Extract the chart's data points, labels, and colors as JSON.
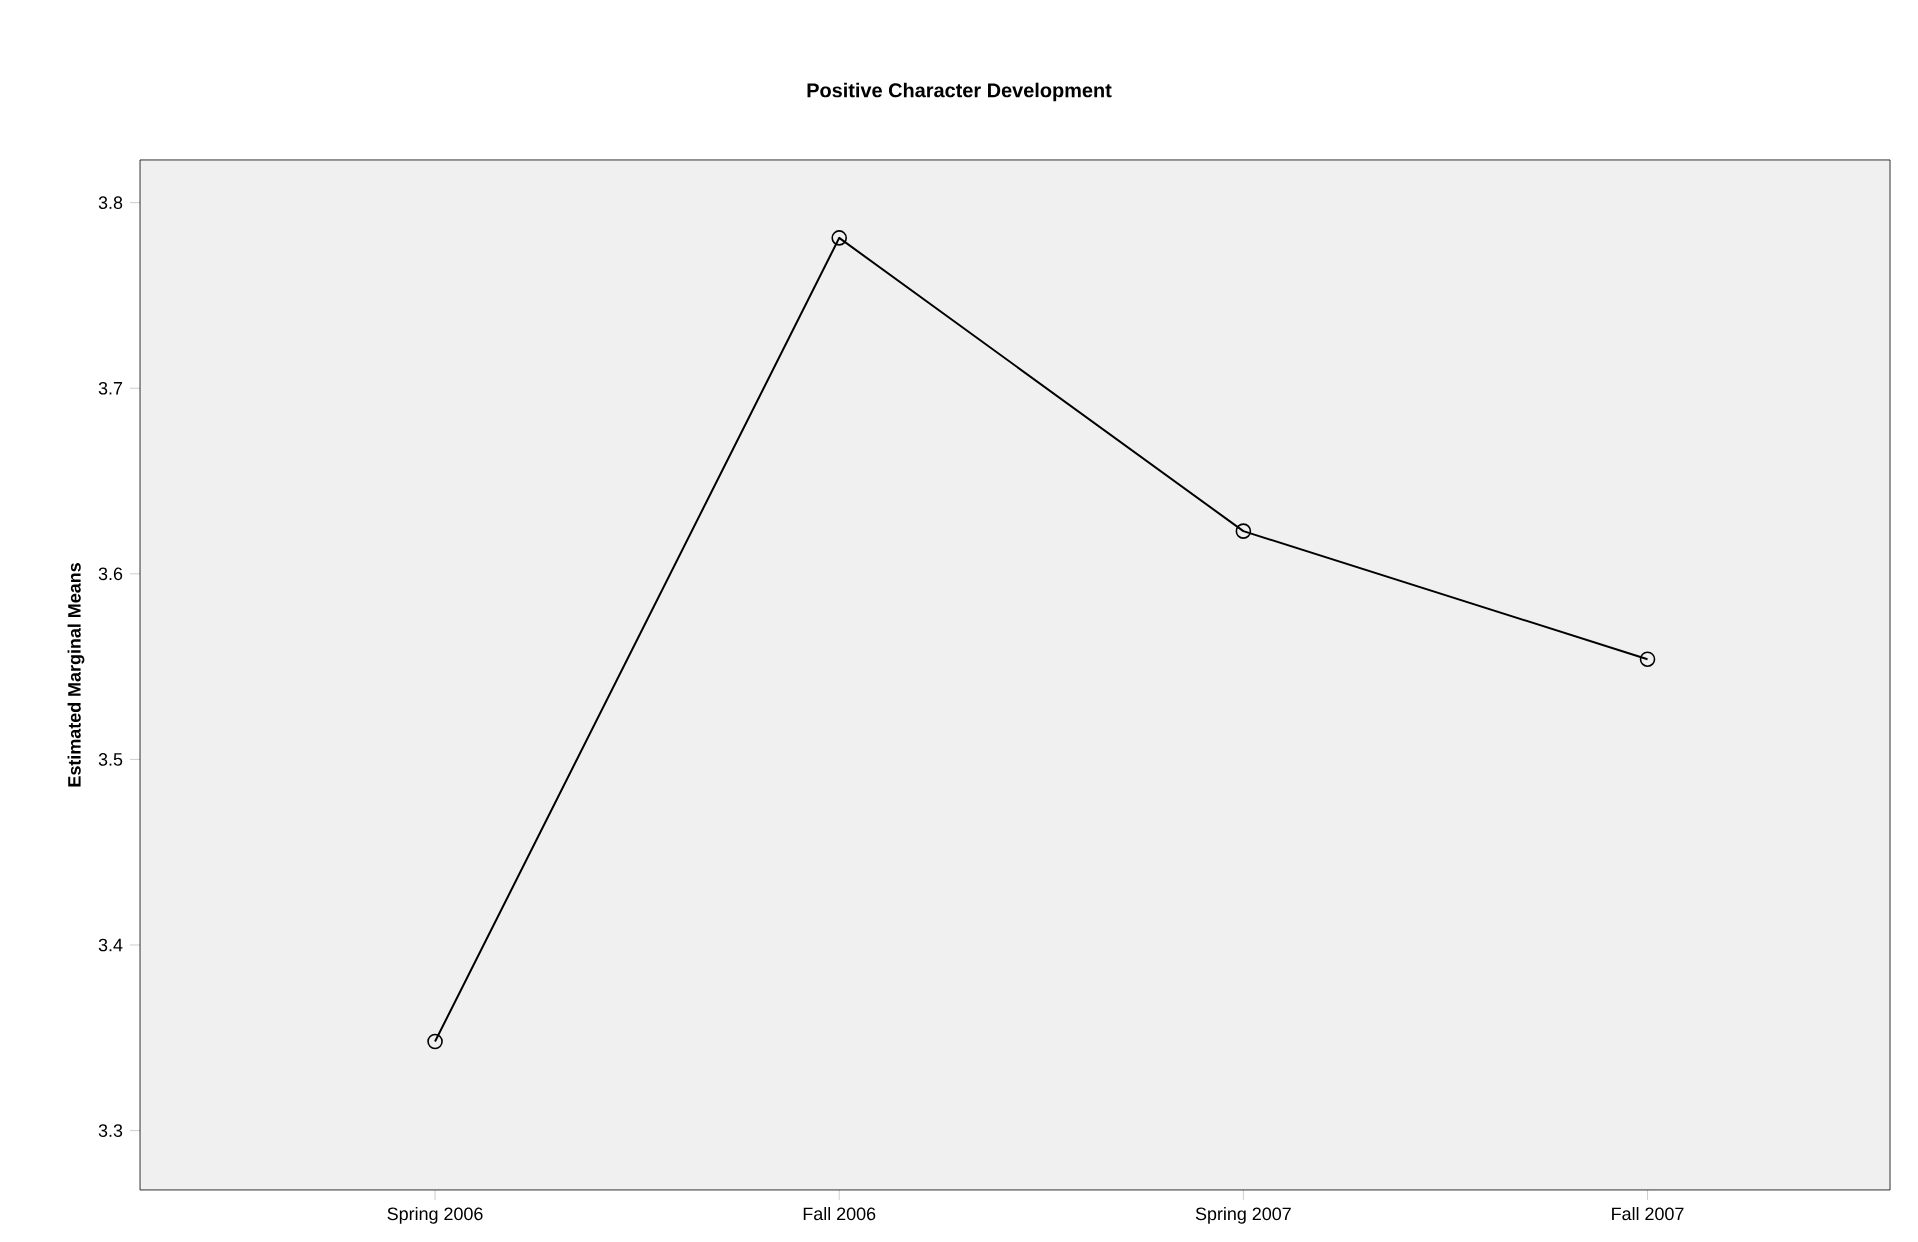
{
  "chart_data": {
    "type": "line",
    "title": "Positive Character Development",
    "ylabel": "Estimated Marginal Means",
    "categories": [
      "Spring 2006",
      "Fall 2006",
      "Spring 2007",
      "Fall 2007"
    ],
    "series": [
      {
        "color": "#000000",
        "values": [
          3.348,
          3.781,
          3.623,
          3.554
        ]
      }
    ],
    "ylim": [
      3.268,
      3.823
    ],
    "yticks": [
      3.3,
      3.4,
      3.5,
      3.6,
      3.7,
      3.8
    ],
    "marker": "circle",
    "line_style": "solid"
  }
}
